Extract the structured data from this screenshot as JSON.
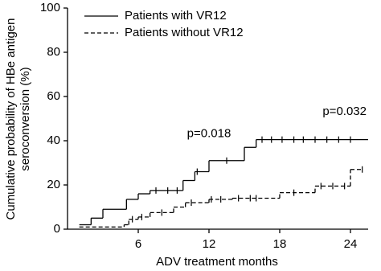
{
  "chart_data": {
    "type": "step",
    "x_label": "ADV treatment months",
    "y_label": [
      "Cumulative probability of HBe antigen",
      "seroconversion (%)"
    ],
    "xlim": [
      0,
      25.5
    ],
    "ylim": [
      0,
      100
    ],
    "xticks": [
      6,
      12,
      18,
      24
    ],
    "yticks": [
      0,
      20,
      40,
      60,
      80,
      100
    ],
    "annotations": [
      {
        "text": "p=0.018",
        "x": 12,
        "y": 43
      },
      {
        "text": "p=0.032",
        "x": 23.5,
        "y": 53
      }
    ],
    "series": [
      {
        "name": "Patients with VR12",
        "color": "#000000",
        "dash": false,
        "x": [
          1,
          2,
          3,
          5,
          6,
          7,
          9.8,
          10.8,
          12,
          15,
          16,
          25.5
        ],
        "values": [
          2,
          5,
          9,
          13.5,
          16,
          17.5,
          22,
          26,
          31,
          37,
          40.5,
          40.5
        ],
        "censored": {
          "x": [
            7.5,
            8.5,
            9.3,
            11,
            13.5,
            16.5,
            17.3,
            18.2,
            19.2,
            20,
            21,
            22,
            23,
            24
          ],
          "values": [
            17.5,
            17.5,
            17.5,
            26,
            31,
            40.5,
            40.5,
            40.5,
            40.5,
            40.5,
            40.5,
            40.5,
            40.5,
            40.5
          ]
        }
      },
      {
        "name": "Patients without VR12",
        "color": "#000000",
        "dash": true,
        "x": [
          1,
          4.8,
          5.2,
          6,
          7,
          9,
          10,
          12,
          14,
          18,
          21,
          24,
          25
        ],
        "values": [
          1,
          2,
          4.5,
          5.5,
          7.5,
          10,
          12,
          13.5,
          14,
          16.5,
          19.5,
          27,
          27
        ],
        "censored": {
          "x": [
            5.5,
            6.3,
            8,
            10.5,
            12.2,
            13,
            14.5,
            15.5,
            16,
            19.2,
            21.5,
            22.5,
            23.5,
            25
          ],
          "values": [
            4.5,
            5.5,
            7.5,
            12,
            13.5,
            13.5,
            14,
            14,
            14,
            16.5,
            19.5,
            19.5,
            19.5,
            27
          ]
        }
      }
    ]
  }
}
